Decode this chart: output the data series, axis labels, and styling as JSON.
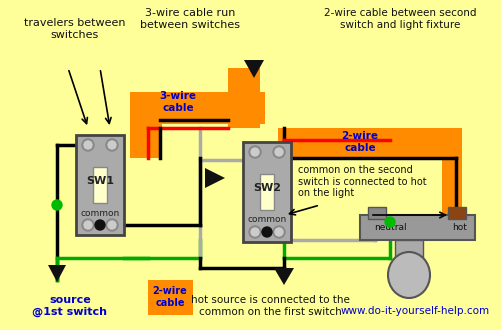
{
  "bg_color": "#ffff99",
  "fig_width": 5.02,
  "fig_height": 3.3,
  "dpi": 100,
  "labels": {
    "travelers": "travelers between\nswitches",
    "three_wire_run": "3-wire cable run\nbetween switches",
    "three_wire_cable": "3-wire\ncable",
    "two_wire_top_label": "2-wire cable between second\nswitch and light fixture",
    "two_wire_cable_right": "2-wire\ncable",
    "common_note": "common on the second\nswitch is connected to hot\non the light",
    "source_label": "source\n@1st switch",
    "two_wire_cable_label": "2-wire\ncable",
    "hot_source_note": "hot source is connected to the\ncommon on the first switch",
    "website": "www.do-it-yourself-help.com",
    "neutral": "neutral",
    "hot": "hot",
    "sw1": "SW1",
    "sw2": "SW2",
    "common1": "common",
    "common2": "common"
  },
  "colors": {
    "orange_cable": "#FF8C00",
    "black_wire": "#000000",
    "red_wire": "#FF0000",
    "green_wire": "#00AA00",
    "gray_wire": "#AAAAAA",
    "gray_switch": "#AAAAAA",
    "brown_terminal": "#8B4513",
    "blue_text": "#0000CC",
    "black_text": "#111111",
    "green_dot": "#00BB00"
  }
}
